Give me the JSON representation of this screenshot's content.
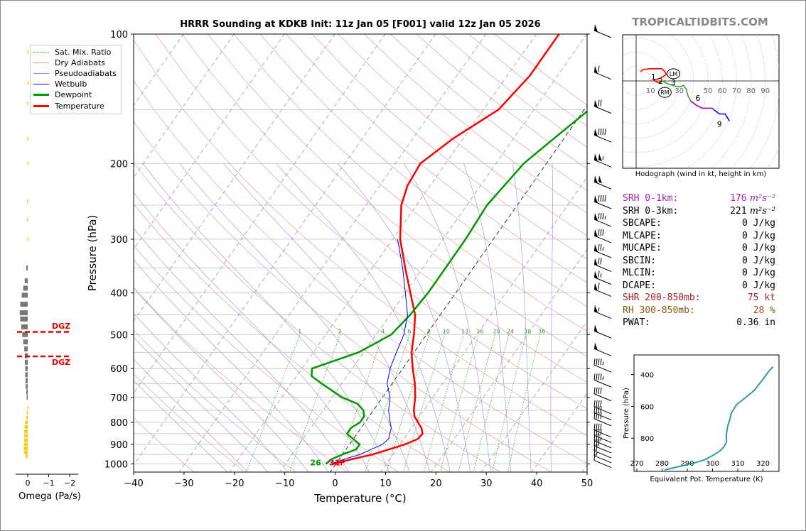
{
  "brand": "TROPICALTIDBITS.COM",
  "chart_data": [
    {
      "type": "line",
      "name": "skew-t",
      "title": "HRRR Sounding at KDKB Init: 11z Jan 05 [F001] valid 12z Jan 05 2026",
      "xlabel": "Temperature (°C)",
      "ylabel": "Pressure (hPa)",
      "xlim": [
        -40,
        50
      ],
      "ylim": [
        1050,
        100
      ],
      "xticks": [
        "−40",
        "−30",
        "−20",
        "−10",
        "0",
        "10",
        "20",
        "30",
        "40",
        "50"
      ],
      "yticks": [
        "100",
        "200",
        "300",
        "400",
        "500",
        "600",
        "700",
        "800",
        "900",
        "1000"
      ],
      "legend_position": "top-left",
      "legend": [
        "Sat. Mix. Ratio",
        "Dry Adiabats",
        "Pseudoadiabats",
        "Wetbulb",
        "Dewpoint",
        "Temperature"
      ],
      "mixing_ratio_labels": [
        "1",
        "2",
        "4",
        "6",
        "8",
        "10",
        "13",
        "16",
        "20",
        "24",
        "30",
        "36"
      ],
      "surface_dewpoint_label": "26",
      "surface_temperature_label": "31F",
      "series": [
        {
          "name": "Temperature",
          "color": "#ff0000",
          "points": [
            [
              1000,
              -0.5
            ],
            [
              975,
              2.5
            ],
            [
              950,
              6
            ],
            [
              925,
              8.5
            ],
            [
              900,
              11
            ],
            [
              875,
              12.8
            ],
            [
              850,
              13
            ],
            [
              825,
              12
            ],
            [
              800,
              10.5
            ],
            [
              775,
              9
            ],
            [
              750,
              8
            ],
            [
              700,
              6.5
            ],
            [
              650,
              4.5
            ],
            [
              600,
              2
            ],
            [
              550,
              -0.5
            ],
            [
              500,
              -2.5
            ],
            [
              450,
              -5
            ],
            [
              400,
              -9
            ],
            [
              350,
              -13.5
            ],
            [
              300,
              -18.5
            ],
            [
              250,
              -23
            ],
            [
              225,
              -24.5
            ],
            [
              200,
              -25
            ],
            [
              175,
              -22
            ],
            [
              150,
              -17
            ],
            [
              125,
              -15.5
            ],
            [
              100,
              -15.5
            ]
          ]
        },
        {
          "name": "Dewpoint",
          "color": "#009900",
          "points": [
            [
              1000,
              -2
            ],
            [
              975,
              -1.5
            ],
            [
              950,
              0
            ],
            [
              925,
              2
            ],
            [
              900,
              2
            ],
            [
              875,
              0
            ],
            [
              850,
              -2
            ],
            [
              825,
              -2
            ],
            [
              800,
              -1
            ],
            [
              775,
              -1
            ],
            [
              750,
              -2
            ],
            [
              725,
              -4
            ],
            [
              700,
              -8
            ],
            [
              650,
              -14
            ],
            [
              625,
              -17
            ],
            [
              600,
              -18
            ],
            [
              550,
              -11
            ],
            [
              500,
              -7
            ],
            [
              450,
              -6
            ],
            [
              400,
              -5.5
            ],
            [
              350,
              -5.5
            ],
            [
              300,
              -5.5
            ],
            [
              250,
              -6
            ],
            [
              200,
              -4.5
            ],
            [
              175,
              -2
            ],
            [
              150,
              1
            ],
            [
              125,
              0
            ],
            [
              100,
              5
            ]
          ]
        },
        {
          "name": "Wetbulb",
          "color": "#0000ff",
          "points": [
            [
              1000,
              -1
            ],
            [
              975,
              1
            ],
            [
              950,
              3.5
            ],
            [
              925,
              5
            ],
            [
              900,
              6.5
            ],
            [
              875,
              7
            ],
            [
              850,
              6.5
            ],
            [
              825,
              6
            ],
            [
              800,
              5
            ],
            [
              775,
              4
            ],
            [
              750,
              3
            ],
            [
              700,
              1.5
            ],
            [
              650,
              -1
            ],
            [
              600,
              -2.5
            ],
            [
              550,
              -3.5
            ],
            [
              500,
              -4.5
            ],
            [
              450,
              -6.5
            ],
            [
              400,
              -10
            ],
            [
              350,
              -14
            ],
            [
              300,
              -19
            ]
          ]
        }
      ],
      "wind_barbs": [
        {
          "p": 1000,
          "kt": 10
        },
        {
          "p": 975,
          "kt": 15
        },
        {
          "p": 950,
          "kt": 20
        },
        {
          "p": 925,
          "kt": 30
        },
        {
          "p": 900,
          "kt": 35
        },
        {
          "p": 875,
          "kt": 40
        },
        {
          "p": 850,
          "kt": 40
        },
        {
          "p": 800,
          "kt": 40
        },
        {
          "p": 775,
          "kt": 40
        },
        {
          "p": 750,
          "kt": 40
        },
        {
          "p": 700,
          "kt": 40
        },
        {
          "p": 650,
          "kt": 45
        },
        {
          "p": 600,
          "kt": 45
        },
        {
          "p": 550,
          "kt": 50
        },
        {
          "p": 500,
          "kt": 50
        },
        {
          "p": 450,
          "kt": 55
        },
        {
          "p": 400,
          "kt": 60
        },
        {
          "p": 375,
          "kt": 65
        },
        {
          "p": 350,
          "kt": 70
        },
        {
          "p": 325,
          "kt": 75
        },
        {
          "p": 300,
          "kt": 80
        },
        {
          "p": 275,
          "kt": 85
        },
        {
          "p": 250,
          "kt": 90
        },
        {
          "p": 225,
          "kt": 100
        },
        {
          "p": 200,
          "kt": 105
        },
        {
          "p": 175,
          "kt": 90
        },
        {
          "p": 150,
          "kt": 70
        },
        {
          "p": 125,
          "kt": 60
        },
        {
          "p": 100,
          "kt": 50
        }
      ]
    },
    {
      "type": "line",
      "name": "hodograph",
      "caption": "Hodograph (wind in kt, height in km)",
      "ring_labels": [
        "10",
        "20",
        "30",
        "50",
        "60",
        "70",
        "80",
        "90"
      ],
      "height_labels": [
        {
          "text": "1",
          "u": 12,
          "v": 3
        },
        {
          "text": "2",
          "u": 17,
          "v": 0
        },
        {
          "text": "3",
          "u": 26,
          "v": -1
        },
        {
          "text": "6",
          "u": 43,
          "v": -12
        },
        {
          "text": "9",
          "u": 58,
          "v": -30
        }
      ],
      "markers": [
        {
          "text": "LM",
          "u": 26,
          "v": 5
        },
        {
          "text": "RM",
          "u": 20,
          "v": -8
        }
      ],
      "segments": [
        {
          "color": "#ff0000",
          "points": [
            [
              3,
              6.5
            ],
            [
              5,
              8
            ],
            [
              10,
              8.5
            ],
            [
              18,
              8.5
            ],
            [
              20,
              6.5
            ],
            [
              21,
              4.5
            ],
            [
              17,
              2
            ],
            [
              14,
              1
            ],
            [
              12,
              0.5
            ]
          ]
        },
        {
          "color": "#ff0000",
          "points": [
            [
              12,
              0.5
            ],
            [
              15,
              -1
            ],
            [
              17,
              -1
            ],
            [
              18,
              0
            ]
          ]
        },
        {
          "color": "#33aa33",
          "points": [
            [
              18,
              0
            ],
            [
              22,
              -2
            ],
            [
              28,
              -4
            ],
            [
              31,
              -4
            ],
            [
              33,
              -3
            ],
            [
              35,
              -6
            ],
            [
              36,
              -10
            ],
            [
              38,
              -14
            ]
          ]
        },
        {
          "color": "#aa00aa",
          "points": [
            [
              38,
              -14
            ],
            [
              42,
              -17
            ],
            [
              46,
              -19
            ],
            [
              53,
              -19
            ],
            [
              54,
              -20
            ]
          ]
        },
        {
          "color": "#0000ff",
          "points": [
            [
              54,
              -20
            ],
            [
              58,
              -23
            ],
            [
              62,
              -23
            ],
            [
              65,
              -28
            ]
          ]
        }
      ]
    },
    {
      "type": "line",
      "name": "theta-e",
      "xlabel": "Equivalent Pot. Temperature (K)",
      "ylabel": "Pressure (hPa)",
      "xlim": [
        270,
        325
      ],
      "ylim": [
        1000,
        300
      ],
      "xticks": [
        "270",
        "280",
        "290",
        "300",
        "310",
        "320"
      ],
      "yticks": [
        "400",
        "600",
        "800"
      ],
      "series": [
        {
          "name": "",
          "color": "#3399aa",
          "points": [
            [
              281,
              1000
            ],
            [
              285,
              985
            ],
            [
              289,
              970
            ],
            [
              293,
              955
            ],
            [
              297,
              935
            ],
            [
              300,
              910
            ],
            [
              303,
              880
            ],
            [
              304.5,
              855
            ],
            [
              305.5,
              825
            ],
            [
              305.5,
              775
            ],
            [
              306,
              725
            ],
            [
              307,
              675
            ],
            [
              307.5,
              640
            ],
            [
              309.5,
              590
            ],
            [
              313,
              545
            ],
            [
              316.5,
              500
            ],
            [
              318,
              470
            ],
            [
              320,
              430
            ],
            [
              322,
              385
            ],
            [
              324,
              350
            ]
          ]
        }
      ]
    },
    {
      "type": "bar",
      "name": "omega",
      "xlabel": "Omega (Pa/s)",
      "xticks": [
        "0",
        "−1",
        "−2"
      ],
      "dgz_labels": [
        "DGZ",
        "DGZ"
      ],
      "dgz_pressures": [
        493,
        562
      ],
      "bars": [
        {
          "p": 110,
          "v": 0.05
        },
        {
          "p": 130,
          "v": 0.05
        },
        {
          "p": 145,
          "v": 0.05
        },
        {
          "p": 175,
          "v": 0.05
        },
        {
          "p": 200,
          "v": 0.05
        },
        {
          "p": 245,
          "v": 0.06
        },
        {
          "p": 270,
          "v": 0.08
        },
        {
          "p": 300,
          "v": 0.06
        },
        {
          "p": 350,
          "v": 0.15
        },
        {
          "p": 375,
          "v": 0.3
        },
        {
          "p": 390,
          "v": 0.45
        },
        {
          "p": 405,
          "v": 0.6
        },
        {
          "p": 425,
          "v": 0.75
        },
        {
          "p": 445,
          "v": 0.8
        },
        {
          "p": 460,
          "v": 0.75
        },
        {
          "p": 480,
          "v": 0.65
        },
        {
          "p": 500,
          "v": 0.55
        },
        {
          "p": 520,
          "v": 0.45
        },
        {
          "p": 540,
          "v": 0.35
        },
        {
          "p": 560,
          "v": 0.3
        },
        {
          "p": 580,
          "v": 0.28
        },
        {
          "p": 600,
          "v": 0.25
        },
        {
          "p": 620,
          "v": 0.25
        },
        {
          "p": 640,
          "v": 0.22
        },
        {
          "p": 660,
          "v": 0.2
        },
        {
          "p": 680,
          "v": 0.15
        },
        {
          "p": 700,
          "v": 0.1
        },
        {
          "p": 740,
          "v": 0.05
        },
        {
          "p": 760,
          "v": 0.1
        },
        {
          "p": 780,
          "v": 0.15
        },
        {
          "p": 800,
          "v": 0.25
        },
        {
          "p": 820,
          "v": 0.3
        },
        {
          "p": 840,
          "v": 0.35
        },
        {
          "p": 860,
          "v": 0.35
        },
        {
          "p": 880,
          "v": 0.35
        },
        {
          "p": 900,
          "v": 0.35
        },
        {
          "p": 920,
          "v": 0.4
        },
        {
          "p": 940,
          "v": 0.35
        },
        {
          "p": 960,
          "v": 0.2
        }
      ]
    }
  ],
  "params": [
    {
      "label": "SRH 0-1km:",
      "value": "176",
      "unit": " m²s⁻²",
      "color": "#aa22aa"
    },
    {
      "label": "SRH 0-3km:",
      "value": "221",
      "unit": " m²s⁻²",
      "color": "#000000"
    },
    {
      "label": "SBCAPE:",
      "value": "0 J/kg",
      "unit": "",
      "color": "#000000"
    },
    {
      "label": "MLCAPE:",
      "value": "0 J/kg",
      "unit": "",
      "color": "#000000"
    },
    {
      "label": "MUCAPE:",
      "value": "0 J/kg",
      "unit": "",
      "color": "#000000"
    },
    {
      "label": "SBCIN:",
      "value": "0 J/kg",
      "unit": "",
      "color": "#000000"
    },
    {
      "label": "MLCIN:",
      "value": "0 J/kg",
      "unit": "",
      "color": "#000000"
    },
    {
      "label": "DCAPE:",
      "value": "0 J/kg",
      "unit": "",
      "color": "#000000"
    },
    {
      "label": "SHR 200-850mb:",
      "value": "75 kt",
      "unit": "",
      "color": "#aa2222"
    },
    {
      "label": "RH 300-850mb:",
      "value": "28 %",
      "unit": "",
      "color": "#885511"
    },
    {
      "label": "PWAT:",
      "value": "0.36 in",
      "unit": "",
      "color": "#000000"
    }
  ]
}
